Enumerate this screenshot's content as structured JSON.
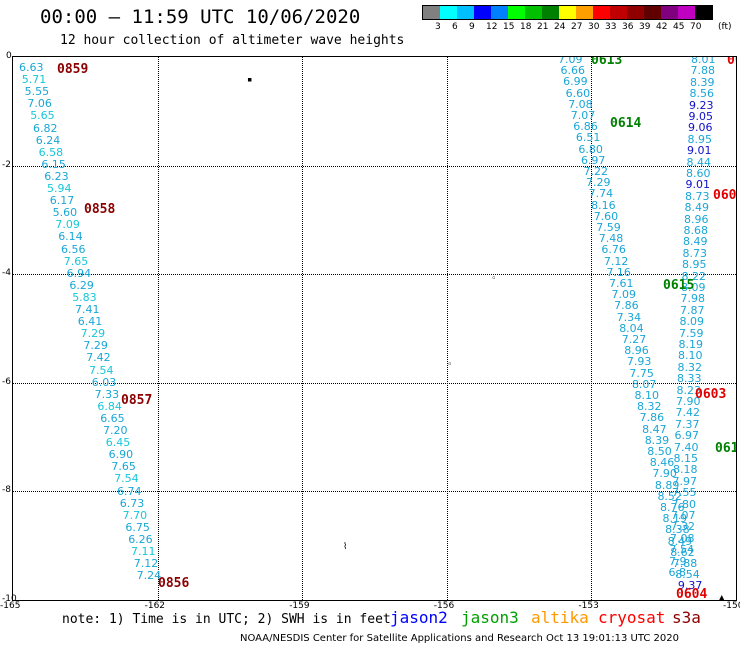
{
  "header": {
    "title": "00:00 – 11:59 UTC 10/06/2020",
    "subtitle": "12 hour collection of altimeter wave heights"
  },
  "legend": {
    "unit": "(ft)",
    "colors": [
      "#808080",
      "#00ffff",
      "#00bfff",
      "#0000ff",
      "#0080ff",
      "#00ff00",
      "#00c000",
      "#008000",
      "#ffff00",
      "#ffa000",
      "#ff0000",
      "#c00000",
      "#900000",
      "#600000",
      "#800080",
      "#c000c0",
      "#000000"
    ],
    "labels": [
      "3",
      "6",
      "9",
      "12",
      "15",
      "18",
      "21",
      "24",
      "27",
      "30",
      "33",
      "36",
      "39",
      "42",
      "45",
      "70"
    ]
  },
  "map": {
    "lon_ticks": [
      "-165",
      "-162",
      "-159",
      "-156",
      "-153",
      "-150"
    ],
    "lat_ticks": [
      "0",
      "-2",
      "-4",
      "-6",
      "-8",
      "-10"
    ]
  },
  "time_labels": [
    {
      "text": "0859",
      "color": "#8b0000"
    },
    {
      "text": "0858",
      "color": "#8b0000"
    },
    {
      "text": "0857",
      "color": "#8b0000"
    },
    {
      "text": "0856",
      "color": "#8b0000"
    },
    {
      "text": "0613",
      "color": "#008000"
    },
    {
      "text": "0614",
      "color": "#008000"
    },
    {
      "text": "0615",
      "color": "#008000"
    },
    {
      "text": "061",
      "color": "#008000"
    },
    {
      "text": "060",
      "color": "#e00000"
    },
    {
      "text": "0603",
      "color": "#e00000"
    },
    {
      "text": "0604",
      "color": "#e00000"
    },
    {
      "text": "06",
      "color": "#e00000"
    }
  ],
  "track_a": [
    "6.63",
    "5.71",
    "5.55",
    "7.06",
    "5.65",
    "6.82",
    "6.24",
    "6.58",
    "6.15",
    "6.23",
    "5.94",
    "6.17",
    "5.60",
    "7.09",
    "6.14",
    "6.56",
    "7.65",
    "6.94",
    "6.29",
    "5.83",
    "7.41",
    "6.41",
    "7.29",
    "7.29",
    "7.42",
    "7.54",
    "6.03",
    "7.33",
    "6.84",
    "6.65",
    "7.20",
    "6.45",
    "6.90",
    "7.65",
    "7.54",
    "6.74",
    "6.73",
    "7.70",
    "6.75",
    "6.26",
    "7.11",
    "7.12",
    "7.24"
  ],
  "track_b": [
    "7.09",
    "6.66",
    "6.99",
    "6.60",
    "7.08",
    "7.07",
    "6.86",
    "6.51",
    "6.80",
    "6.97",
    "7.22",
    "7.29",
    "7.74",
    "8.16",
    "7.60",
    "7.59",
    "7.48",
    "6.76",
    "7.12",
    "7.16",
    "7.61",
    "7.09",
    "7.86",
    "7.34",
    "8.04",
    "7.27",
    "8.96",
    "7.93",
    "7.75",
    "8.07",
    "8.10",
    "8.32",
    "7.86",
    "8.47",
    "8.39",
    "8.50",
    "8.46",
    "7.90",
    "8.89",
    "8.52",
    "8.76",
    "8.19",
    "8.38",
    "8.49",
    "8.62",
    "7.88",
    "8.54",
    "9.37"
  ],
  "track_c": [
    "8.01",
    "7.88",
    "8.39",
    "8.56",
    "9.23",
    "9.05",
    "9.06",
    "8.95",
    "9.01",
    "8.44",
    "8.60",
    "9.01",
    "8.73",
    "8.49",
    "8.96",
    "8.68",
    "8.49",
    "8.73",
    "8.95",
    "8.22",
    "8.09",
    "7.98",
    "7.87",
    "8.09",
    "7.59",
    "8.19",
    "8.10",
    "8.32",
    "8.33",
    "8.23",
    "7.90",
    "7.42",
    "7.37",
    "6.97",
    "7.40",
    "8.15",
    "8.18",
    "7.97",
    "7.55",
    "7.80",
    "7.07",
    "7.32",
    "7.08",
    "7.54",
    "7.9",
    "6.8"
  ],
  "blue_values": [
    "9.23",
    "9.05",
    "9.06",
    "9.01",
    "9.01",
    "9.37"
  ],
  "footer": {
    "note": "note:  1) Time is in UTC; 2) SWH is in feet",
    "satellites": [
      {
        "name": "jason2",
        "color": "#0000ff"
      },
      {
        "name": "jason3",
        "color": "#00a000"
      },
      {
        "name": "altika",
        "color": "#ff9900"
      },
      {
        "name": "cryosat",
        "color": "#ff0000"
      },
      {
        "name": "s3a",
        "color": "#8b0000"
      }
    ],
    "credit": "NOAA/NESDIS Center for Satellite Applications and Research   Oct 13 19:01:13 UTC 2020"
  }
}
